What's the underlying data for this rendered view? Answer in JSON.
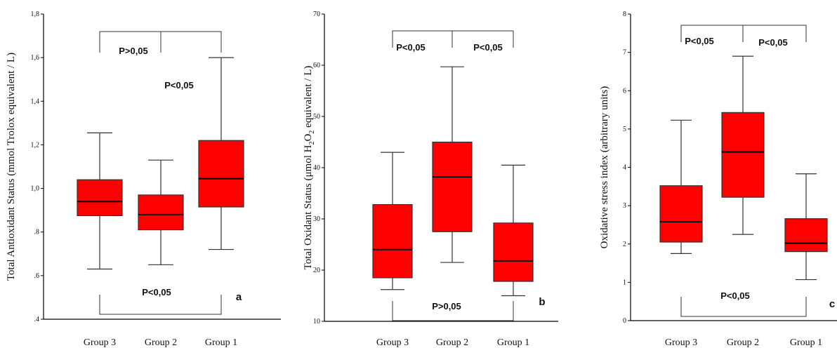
{
  "chart_data": [
    {
      "type": "box",
      "panel_label": "a",
      "ylabel": "Total Antioxidant Status (mmol Trolox equivalent / L)",
      "ylim": [
        0.4,
        1.8
      ],
      "y_ticks": [
        ".4",
        ".6",
        ".8",
        "1,0",
        "1,2",
        "1,4",
        "1,6",
        "1,8"
      ],
      "y_tick_values": [
        0.4,
        0.6,
        0.8,
        1.0,
        1.2,
        1.4,
        1.6,
        1.8
      ],
      "categories": [
        "Group 3",
        "Group 2",
        "Group 1"
      ],
      "boxes": [
        {
          "min": 0.63,
          "q1": 0.875,
          "median": 0.94,
          "q3": 1.04,
          "max": 1.255
        },
        {
          "min": 0.65,
          "q1": 0.81,
          "median": 0.88,
          "q3": 0.97,
          "max": 1.13
        },
        {
          "min": 0.72,
          "q1": 0.915,
          "median": 1.045,
          "q3": 1.22,
          "max": 1.6
        }
      ],
      "annotations": [
        {
          "text": "P>0,05",
          "from": 0,
          "to": 1,
          "pos": "top"
        },
        {
          "text": "P<0,05",
          "from": 1,
          "to": 2,
          "pos": "top-floating"
        },
        {
          "text": "P<0,05",
          "from": 0,
          "to": 2,
          "pos": "bottom"
        }
      ]
    },
    {
      "type": "box",
      "panel_label": "b",
      "ylabel_prefix": "Total Oxidant Status (μmol H",
      "ylabel_sub1": "2",
      "ylabel_mid": "O",
      "ylabel_sub2": "2",
      "ylabel_suffix": " equivalent / L)",
      "ylim": [
        10,
        70
      ],
      "y_ticks": [
        "10",
        "20",
        "30",
        "40",
        "50",
        "60",
        "70"
      ],
      "y_tick_values": [
        10,
        20,
        30,
        40,
        50,
        60,
        70
      ],
      "categories": [
        "Group 3",
        "Group 2",
        "Group 1"
      ],
      "boxes": [
        {
          "min": 16.2,
          "q1": 18.5,
          "median": 24,
          "q3": 32.8,
          "max": 43
        },
        {
          "min": 21.5,
          "q1": 27.5,
          "median": 38.2,
          "q3": 45,
          "max": 59.7
        },
        {
          "min": 15,
          "q1": 17.8,
          "median": 21.8,
          "q3": 29.2,
          "max": 40.5
        }
      ],
      "annotations": [
        {
          "text": "P<0,05",
          "from": 0,
          "to": 1,
          "pos": "top"
        },
        {
          "text": "P<0,05",
          "from": 1,
          "to": 2,
          "pos": "top"
        },
        {
          "text": "P>0,05",
          "from": 0,
          "to": 2,
          "pos": "bottom"
        }
      ]
    },
    {
      "type": "box",
      "panel_label": "c",
      "ylabel": "Oxidative stress index (arbitrary units)",
      "ylim": [
        0,
        8
      ],
      "y_ticks": [
        "0",
        "1",
        "2",
        "3",
        "4",
        "5",
        "6",
        "7",
        "8"
      ],
      "y_tick_values": [
        0,
        1,
        2,
        3,
        4,
        5,
        6,
        7,
        8
      ],
      "categories": [
        "Group 3",
        "Group 2",
        "Group 1"
      ],
      "boxes": [
        {
          "min": 1.75,
          "q1": 2.05,
          "median": 2.58,
          "q3": 3.52,
          "max": 5.23
        },
        {
          "min": 2.25,
          "q1": 3.22,
          "median": 4.4,
          "q3": 5.43,
          "max": 6.9
        },
        {
          "min": 1.07,
          "q1": 1.8,
          "median": 2.02,
          "q3": 2.66,
          "max": 3.83
        }
      ],
      "annotations": [
        {
          "text": "P<0,05",
          "from": 0,
          "to": 1,
          "pos": "top"
        },
        {
          "text": "P<0,05",
          "from": 1,
          "to": 2,
          "pos": "top"
        },
        {
          "text": "P<0,05",
          "from": 0,
          "to": 2,
          "pos": "bottom"
        }
      ]
    }
  ],
  "colors": {
    "box_fill": "#ff0000",
    "line": "#333333",
    "background": "#ffffff"
  }
}
